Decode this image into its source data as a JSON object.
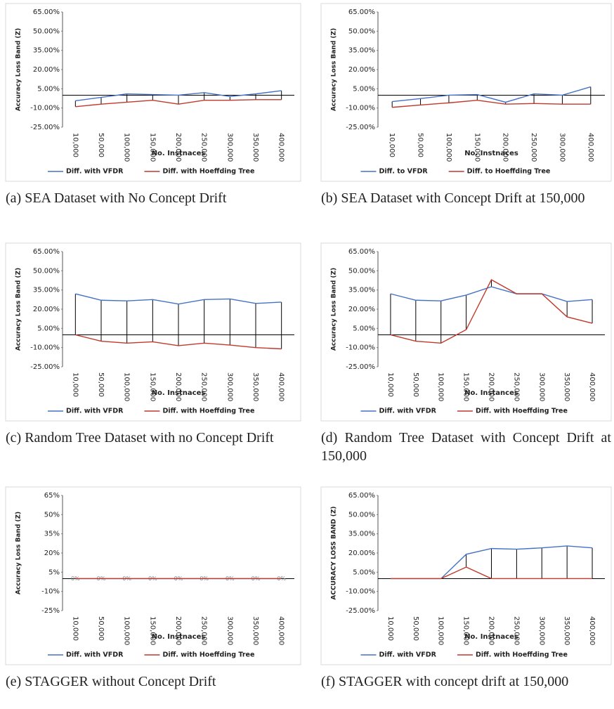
{
  "chart_data": [
    {
      "type": "line",
      "caption": "(a) SEA Dataset with No Concept Drift",
      "y_label": "Accuracy Loss Band (Z)",
      "x_label": "No. Instnaces",
      "categories": [
        "10,000",
        "50,000",
        "100,000",
        "150,000",
        "200,000",
        "250,000",
        "300,000",
        "350,000",
        "400,000"
      ],
      "series": [
        {
          "name": "Diff. with VFDR",
          "color": "#4472c4",
          "values": [
            -4.4,
            -1.7,
            1,
            0.5,
            0,
            2,
            -1,
            1,
            3.5
          ]
        },
        {
          "name": "Diff. with Hoeffding Tree",
          "color": "#c0392b",
          "values": [
            -9,
            -7,
            -5.5,
            -4,
            -7,
            -4,
            -4,
            -3.5,
            -3.5
          ]
        }
      ],
      "ylim": [
        -25,
        65
      ],
      "yticks": [
        {
          "value": 65,
          "label": "65.00%"
        },
        {
          "value": 50,
          "label": "50.00%"
        },
        {
          "value": 35,
          "label": "35.00%"
        },
        {
          "value": 20,
          "label": "20.00%"
        },
        {
          "value": 5,
          "label": "5.00%"
        },
        {
          "value": -10,
          "label": "-10.00%"
        },
        {
          "value": -25,
          "label": "-25.00%"
        }
      ]
    },
    {
      "type": "line",
      "caption": "(b) SEA Dataset with Concept Drift at 150,000",
      "y_label": "Accuracy Loss Band (Z)",
      "x_label": "No. Instnaces",
      "categories": [
        "10,000",
        "50,000",
        "100,000",
        "150,000",
        "200,000",
        "250,000",
        "300,000",
        "400,000"
      ],
      "series": [
        {
          "name": "Diff. to VFDR",
          "color": "#4472c4",
          "values": [
            -5,
            -2.7,
            0,
            0.5,
            -5.5,
            1,
            0,
            6.5
          ]
        },
        {
          "name": "Diff. to Hoeffding Tree",
          "color": "#c0392b",
          "values": [
            -9.5,
            -7.7,
            -6,
            -4,
            -7,
            -6.5,
            -7,
            -7
          ]
        }
      ],
      "ylim": [
        -25,
        65
      ],
      "yticks": [
        {
          "value": 65,
          "label": "65.00%"
        },
        {
          "value": 50,
          "label": "50.00%"
        },
        {
          "value": 35,
          "label": "35.00%"
        },
        {
          "value": 20,
          "label": "20.00%"
        },
        {
          "value": 5,
          "label": "5.00%"
        },
        {
          "value": -10,
          "label": "-10.00%"
        },
        {
          "value": -25,
          "label": "-25.00%"
        }
      ]
    },
    {
      "type": "line",
      "caption": "(c) Random Tree Dataset with no Concept Drift",
      "y_label": "Accuracy Loss Band (Z)",
      "x_label": "No. Instnaces",
      "categories": [
        "10,000",
        "50,000",
        "100,000",
        "150,000",
        "200,000",
        "250,000",
        "300,000",
        "350,000",
        "400,000"
      ],
      "series": [
        {
          "name": "Diff. with VFDR",
          "color": "#4472c4",
          "values": [
            32,
            27,
            26.5,
            27.5,
            24,
            27.5,
            28,
            24.5,
            25.5
          ]
        },
        {
          "name": "Diff. with Hoeffding Tree",
          "color": "#c0392b",
          "values": [
            0,
            -5,
            -6.5,
            -5.5,
            -8.5,
            -6.5,
            -8,
            -10,
            -11
          ]
        }
      ],
      "ylim": [
        -25,
        65
      ],
      "yticks": [
        {
          "value": 65,
          "label": "65.00%"
        },
        {
          "value": 50,
          "label": "50.00%"
        },
        {
          "value": 35,
          "label": "35.00%"
        },
        {
          "value": 20,
          "label": "20.00%"
        },
        {
          "value": 5,
          "label": "5.00%"
        },
        {
          "value": -10,
          "label": "-10.00%"
        },
        {
          "value": -25,
          "label": "-25.00%"
        }
      ]
    },
    {
      "type": "line",
      "caption": "(d) Random Tree Dataset with Concept Drift at 150,000",
      "y_label": "Accuracy Loss Band (Z)",
      "x_label": "No. Instances",
      "categories": [
        "10,000",
        "50,000",
        "100,000",
        "150,000",
        "200,000",
        "250,000",
        "300,000",
        "350,000",
        "400,000"
      ],
      "series": [
        {
          "name": "Diff. with VFDR",
          "color": "#4472c4",
          "values": [
            32,
            27,
            26.5,
            31,
            37.5,
            32,
            32,
            26,
            27.5
          ]
        },
        {
          "name": "Diff. with Hoeffding Tree",
          "color": "#c0392b",
          "values": [
            0,
            -5,
            -6.5,
            4,
            43,
            32,
            32,
            14,
            9
          ]
        }
      ],
      "ylim": [
        -25,
        65
      ],
      "yticks": [
        {
          "value": 65,
          "label": "65.00%"
        },
        {
          "value": 50,
          "label": "50.00%"
        },
        {
          "value": 35,
          "label": "35.00%"
        },
        {
          "value": 20,
          "label": "20.00%"
        },
        {
          "value": 5,
          "label": "5.00%"
        },
        {
          "value": -10,
          "label": "-10.00%"
        },
        {
          "value": -25,
          "label": "-25.00%"
        }
      ]
    },
    {
      "type": "line",
      "caption": "(e) STAGGER without Concept Drift",
      "y_label": "Accuracy Loss Band (Z)",
      "x_label": "No. Instnaces",
      "categories": [
        "10,000",
        "50,000",
        "100,000",
        "150,000",
        "200,000",
        "250,000",
        "300,000",
        "350,000",
        "400,000"
      ],
      "series": [
        {
          "name": "Diff. with VFDR",
          "color": "#4472c4",
          "values": [
            0,
            0,
            0,
            0,
            0,
            0,
            0,
            0,
            0
          ],
          "value_labels": [
            "0%",
            "0%",
            "0%",
            "0%",
            "0%",
            "0%",
            "0%",
            "0%",
            "0%"
          ]
        },
        {
          "name": "Diff. with Hoeffding Tree",
          "color": "#c0392b",
          "values": [
            0,
            0,
            0,
            0,
            0,
            0,
            0,
            0,
            0
          ]
        }
      ],
      "ylim": [
        -25,
        65
      ],
      "yticks": [
        {
          "value": 65,
          "label": "65%"
        },
        {
          "value": 50,
          "label": "50%"
        },
        {
          "value": 35,
          "label": "35%"
        },
        {
          "value": 20,
          "label": "20%"
        },
        {
          "value": 5,
          "label": "5%"
        },
        {
          "value": -10,
          "label": "-10%"
        },
        {
          "value": -25,
          "label": "-25%"
        }
      ]
    },
    {
      "type": "line",
      "caption": "(f) STAGGER with concept drift at 150,000",
      "y_label": "ACCURACY LOSS BAND (Z)",
      "x_label": "No. Instnaces",
      "categories": [
        "10,000",
        "50,000",
        "100,000",
        "150,000",
        "200,000",
        "250,000",
        "300,000",
        "350,000",
        "400,000"
      ],
      "series": [
        {
          "name": "Diff. with VFDR",
          "color": "#4472c4",
          "values": [
            0,
            0,
            0,
            19,
            23.5,
            23,
            24,
            25.5,
            24
          ]
        },
        {
          "name": "Diff. with Hoeffding Tree",
          "color": "#c0392b",
          "values": [
            0,
            0,
            0,
            9,
            0,
            0,
            0,
            0,
            0
          ]
        }
      ],
      "ylim": [
        -25,
        65
      ],
      "yticks": [
        {
          "value": 65,
          "label": "65.00%"
        },
        {
          "value": 50,
          "label": "50.00%"
        },
        {
          "value": 35,
          "label": "35.00%"
        },
        {
          "value": 20,
          "label": "20.00%"
        },
        {
          "value": 5,
          "label": "5.00%"
        },
        {
          "value": -10,
          "label": "-10.00%"
        },
        {
          "value": -25,
          "label": "-25.00%"
        }
      ]
    }
  ]
}
